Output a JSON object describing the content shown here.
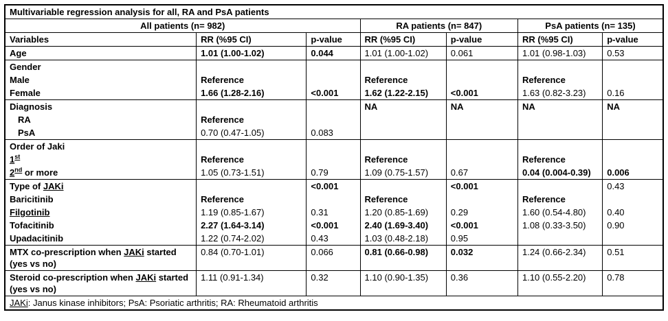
{
  "title": "Multivariable regression analysis for all, RA and PsA patients",
  "group_headers": [
    {
      "label": "All patients (n= 982)",
      "colspan": 3
    },
    {
      "label": "RA patients (n= 847)",
      "colspan": 2
    },
    {
      "label": "PsA patients (n= 135)",
      "colspan": 2
    }
  ],
  "column_headers": [
    "Variables",
    "RR (%95 CI)",
    "p-value",
    "RR (%95 CI)",
    "p-value",
    "RR (%95 CI)",
    "p-value"
  ],
  "rows": [
    {
      "id": "age",
      "sep": true,
      "cells": [
        {
          "t": "Age",
          "b": true
        },
        {
          "t": "1.01 (1.00-1.02)",
          "b": true
        },
        {
          "t": "0.044",
          "b": true
        },
        {
          "t": "1.01 (1.00-1.02)"
        },
        {
          "t": "0.061"
        },
        {
          "t": "1.01 (0.98-1.03)"
        },
        {
          "t": "0.53"
        }
      ]
    },
    {
      "id": "gender",
      "sep": true,
      "cells": [
        {
          "t": "Gender",
          "b": true
        },
        {},
        {},
        {},
        {},
        {},
        {}
      ]
    },
    {
      "id": "male",
      "sep": false,
      "cells": [
        {
          "t": "Male",
          "b": true
        },
        {
          "t": "Reference",
          "b": true
        },
        {},
        {
          "t": "Reference",
          "b": true
        },
        {},
        {
          "t": "Reference",
          "b": true
        },
        {}
      ]
    },
    {
      "id": "female",
      "sep": false,
      "cells": [
        {
          "t": "Female",
          "b": true
        },
        {
          "t": "1.66 (1.28-2.16)",
          "b": true
        },
        {
          "t": "<0.001",
          "b": true
        },
        {
          "t": "1.62 (1.22-2.15)",
          "b": true
        },
        {
          "t": "<0.001",
          "b": true
        },
        {
          "t": "1.63 (0.82-3.23)"
        },
        {
          "t": "0.16"
        }
      ]
    },
    {
      "id": "diagnosis",
      "sep": true,
      "cells": [
        {
          "t": "Diagnosis",
          "b": true
        },
        {},
        {},
        {
          "t": "NA",
          "b": true
        },
        {
          "t": "NA",
          "b": true
        },
        {
          "t": "NA",
          "b": true
        },
        {
          "t": "NA",
          "b": true
        }
      ]
    },
    {
      "id": "diagnosis-ra",
      "sep": false,
      "cells": [
        {
          "t": "RA",
          "b": true,
          "ind": true
        },
        {
          "t": "Reference",
          "b": true
        },
        {},
        {},
        {},
        {},
        {}
      ]
    },
    {
      "id": "diagnosis-psa",
      "sep": false,
      "cells": [
        {
          "t": "PsA",
          "b": true,
          "ind": true
        },
        {
          "t": "0.70 (0.47-1.05)"
        },
        {
          "t": "0.083"
        },
        {},
        {},
        {},
        {}
      ]
    },
    {
      "id": "order-of-jaki",
      "sep": true,
      "cells": [
        {
          "t": "Order of Jaki",
          "b": true
        },
        {},
        {},
        {},
        {},
        {},
        {}
      ]
    },
    {
      "id": "jaki-1st",
      "sep": false,
      "cells": [
        {
          "b": true,
          "seg": [
            {
              "t": "1",
              "u": true
            },
            {
              "t": "st",
              "sup": true,
              "u": true
            }
          ]
        },
        {
          "t": "Reference",
          "b": true
        },
        {},
        {
          "t": "Reference",
          "b": true
        },
        {},
        {
          "t": "Reference",
          "b": true
        },
        {}
      ]
    },
    {
      "id": "jaki-2nd-or-more",
      "sep": false,
      "cells": [
        {
          "b": true,
          "seg": [
            {
              "t": "2",
              "u": true
            },
            {
              "t": "nd",
              "sup": true,
              "u": true
            },
            {
              "t": " or more"
            }
          ]
        },
        {
          "t": "1.05 (0.73-1.51)"
        },
        {
          "t": "0.79"
        },
        {
          "t": "1.09 (0.75-1.57)"
        },
        {
          "t": "0.67"
        },
        {
          "t": "0.04 (0.004-0.39)",
          "b": true
        },
        {
          "t": "0.006",
          "b": true
        }
      ]
    },
    {
      "id": "type-of-jaki",
      "sep": true,
      "cells": [
        {
          "b": true,
          "seg": [
            {
              "t": "Type of "
            },
            {
              "t": "JAKi",
              "u": true
            }
          ]
        },
        {},
        {
          "t": "<0.001",
          "b": true
        },
        {},
        {
          "t": "<0.001",
          "b": true
        },
        {},
        {
          "t": "0.43"
        }
      ]
    },
    {
      "id": "baricitinib",
      "sep": false,
      "cells": [
        {
          "t": "Baricitinib",
          "b": true
        },
        {
          "t": "Reference",
          "b": true
        },
        {},
        {
          "t": "Reference",
          "b": true
        },
        {},
        {
          "t": "Reference",
          "b": true
        },
        {}
      ]
    },
    {
      "id": "filgotinib",
      "sep": false,
      "cells": [
        {
          "t": "Filgotinib",
          "b": true,
          "u": true
        },
        {
          "t": "1.19 (0.85-1.67)"
        },
        {
          "t": "0.31"
        },
        {
          "t": "1.20 (0.85-1.69)"
        },
        {
          "t": "0.29"
        },
        {
          "t": "1.60 (0.54-4.80)"
        },
        {
          "t": "0.40"
        }
      ]
    },
    {
      "id": "tofacitinib",
      "sep": false,
      "cells": [
        {
          "t": "Tofacitinib",
          "b": true
        },
        {
          "t": "2.27 (1.64-3.14)",
          "b": true
        },
        {
          "t": "<0.001",
          "b": true
        },
        {
          "t": "2.40 (1.69-3.40)",
          "b": true
        },
        {
          "t": "<0.001",
          "b": true
        },
        {
          "t": "1.08 (0.33-3.50)"
        },
        {
          "t": "0.90"
        }
      ]
    },
    {
      "id": "upadacitinib",
      "sep": false,
      "cells": [
        {
          "t": "Upadacitinib",
          "b": true
        },
        {
          "t": "1.22 (0.74-2.02)"
        },
        {
          "t": "0.43"
        },
        {
          "t": "1.03 (0.48-2.18)"
        },
        {
          "t": "0.95"
        },
        {},
        {}
      ]
    },
    {
      "id": "mtx-coprescription",
      "sep": true,
      "cells": [
        {
          "b": true,
          "seg": [
            {
              "t": "MTX co-prescription when "
            },
            {
              "t": "JAKi",
              "u": true
            },
            {
              "t": " started (yes vs no)"
            }
          ]
        },
        {
          "t": "0.84 (0.70-1.01)"
        },
        {
          "t": "0.066"
        },
        {
          "t": "0.81 (0.66-0.98)",
          "b": true
        },
        {
          "t": "0.032",
          "b": true
        },
        {
          "t": "1.24 (0.66-2.34)"
        },
        {
          "t": "0.51"
        }
      ]
    },
    {
      "id": "steroid-coprescription",
      "sep": true,
      "cells": [
        {
          "b": true,
          "seg": [
            {
              "t": "Steroid co-prescription when "
            },
            {
              "t": "JAKi",
              "u": true
            },
            {
              "t": " started (yes vs no)"
            }
          ]
        },
        {
          "t": "1.11 (0.91-1.34)"
        },
        {
          "t": "0.32"
        },
        {
          "t": "1.10 (0.90-1.35)"
        },
        {
          "t": "0.36"
        },
        {
          "t": "1.10 (0.55-2.20)"
        },
        {
          "t": "0.78"
        }
      ]
    }
  ],
  "footnote_segments": [
    {
      "t": "JAKi",
      "u": true
    },
    {
      "t": ": Janus kinase inhibitors; PsA: Psoriatic arthritis; RA: Rheumatoid arthritis"
    }
  ],
  "colors": {
    "border": "#000000",
    "text": "#000000",
    "background": "#ffffff"
  }
}
